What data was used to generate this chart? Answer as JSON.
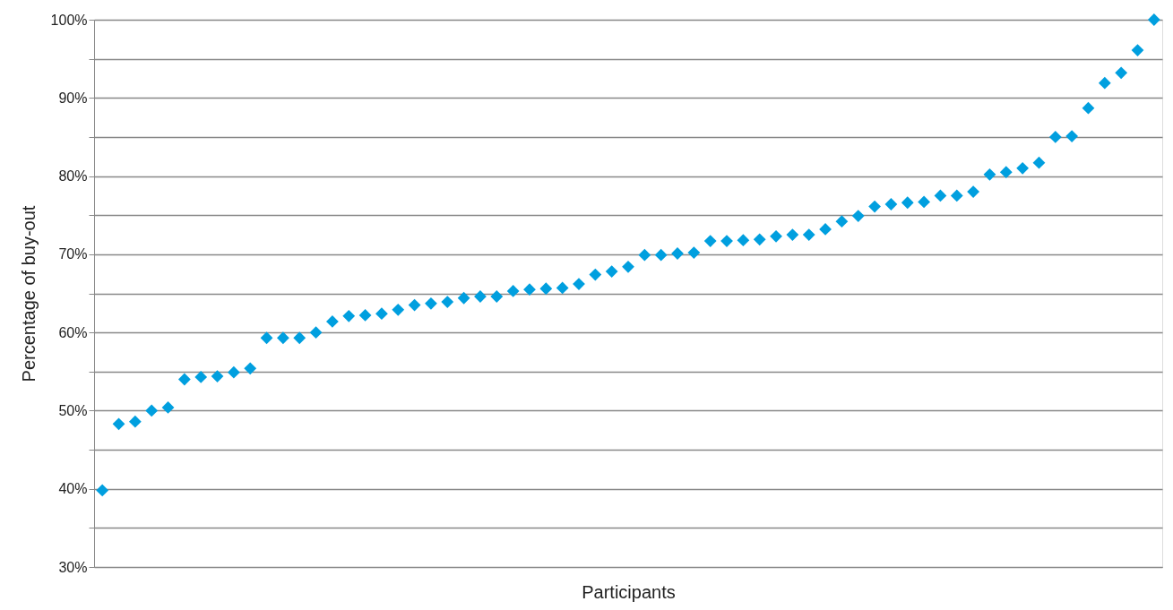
{
  "chart_data": {
    "type": "scatter",
    "xlabel": "Participants",
    "ylabel": "Percentage of buy-out",
    "categories": [
      null,
      null,
      null,
      null,
      null,
      null,
      null,
      null,
      null,
      null,
      null,
      null,
      null,
      null,
      null,
      null,
      null,
      null,
      null,
      null,
      null,
      null,
      null,
      null,
      null,
      null,
      null,
      null,
      null,
      null,
      null,
      null,
      null,
      null,
      null,
      null,
      null,
      null,
      null,
      null,
      null,
      null,
      null,
      null,
      null,
      null,
      null,
      null,
      null,
      null,
      null,
      null,
      null,
      null,
      null,
      null,
      null,
      null,
      null,
      null,
      null,
      null,
      null,
      null,
      null
    ],
    "series": [
      {
        "color": "#009fdf",
        "values": [
          39.8,
          48.3,
          48.6,
          50.0,
          50.4,
          54.0,
          54.3,
          54.4,
          54.9,
          55.4,
          59.3,
          59.3,
          59.3,
          60.0,
          61.4,
          62.1,
          62.2,
          62.4,
          62.9,
          63.5,
          63.7,
          63.9,
          64.4,
          64.6,
          64.6,
          65.3,
          65.5,
          65.6,
          65.7,
          66.2,
          67.4,
          67.8,
          68.4,
          69.9,
          69.9,
          70.1,
          70.2,
          71.7,
          71.7,
          71.8,
          71.9,
          72.3,
          72.5,
          72.5,
          73.2,
          74.2,
          74.9,
          76.1,
          76.4,
          76.6,
          76.7,
          77.5,
          77.5,
          78.0,
          80.2,
          80.5,
          81.0,
          81.7,
          85.0,
          85.1,
          88.7,
          91.9,
          93.2,
          96.1,
          100.0
        ]
      }
    ],
    "ylim": [
      30,
      100
    ],
    "yticks": [
      {
        "value": 30,
        "label": "30%"
      },
      {
        "value": 35,
        "label": null
      },
      {
        "value": 40,
        "label": "40%"
      },
      {
        "value": 45,
        "label": null
      },
      {
        "value": 50,
        "label": "50%"
      },
      {
        "value": 55,
        "label": null
      },
      {
        "value": 60,
        "label": "60%"
      },
      {
        "value": 65,
        "label": null
      },
      {
        "value": 70,
        "label": "70%"
      },
      {
        "value": 75,
        "label": null
      },
      {
        "value": 80,
        "label": "80%"
      },
      {
        "value": 85,
        "label": null
      },
      {
        "value": 90,
        "label": "90%"
      },
      {
        "value": 95,
        "label": null
      },
      {
        "value": 100,
        "label": "100%"
      }
    ],
    "grid": "y",
    "marker": "diamond",
    "tick_labels": "y"
  }
}
